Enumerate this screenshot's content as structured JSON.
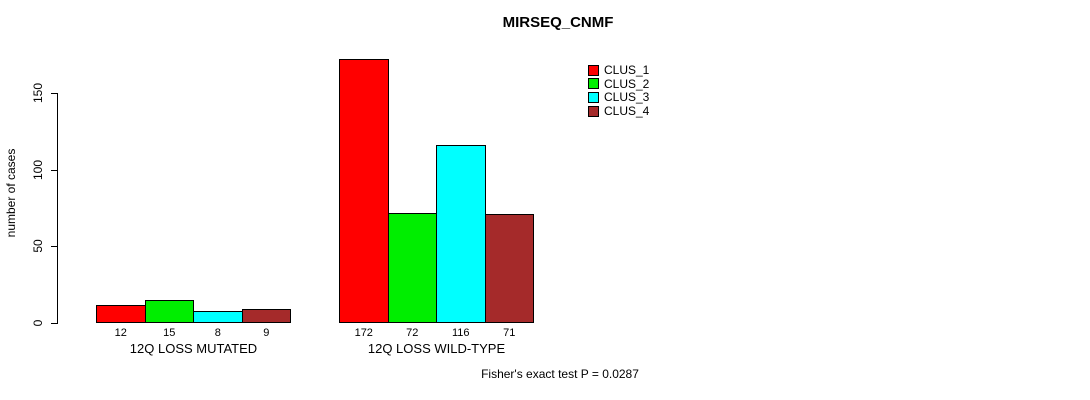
{
  "title": "MIRSEQ_CNMF",
  "chart_data": {
    "type": "bar",
    "title": "MIRSEQ_CNMF",
    "xlabel": "",
    "ylabel": "number of cases",
    "categories": [
      "12Q LOSS MUTATED",
      "12Q LOSS WILD-TYPE"
    ],
    "series": [
      {
        "name": "CLUS_1",
        "color": "#FF0000",
        "values": [
          12,
          172
        ]
      },
      {
        "name": "CLUS_2",
        "color": "#00EE00",
        "values": [
          15,
          72
        ]
      },
      {
        "name": "CLUS_3",
        "color": "#00FFFF",
        "values": [
          8,
          116
        ]
      },
      {
        "name": "CLUS_4",
        "color": "#A52A2A",
        "values": [
          9,
          71
        ]
      }
    ],
    "bar_value_labels": [
      [
        "12",
        "15",
        "8",
        "9"
      ],
      [
        "172",
        "72",
        "116",
        "71"
      ]
    ],
    "yticks": [
      0,
      50,
      100,
      150
    ],
    "ylim": [
      0,
      180
    ],
    "grid": false,
    "legend_position": "top-right",
    "legend_entries": [
      "CLUS_1",
      "CLUS_2",
      "CLUS_3",
      "CLUS_4"
    ],
    "annotation": "Fisher's exact test P = 0.0287"
  },
  "colors": {
    "axis": "#000000",
    "background": "#FFFFFF",
    "text": "#000000"
  }
}
